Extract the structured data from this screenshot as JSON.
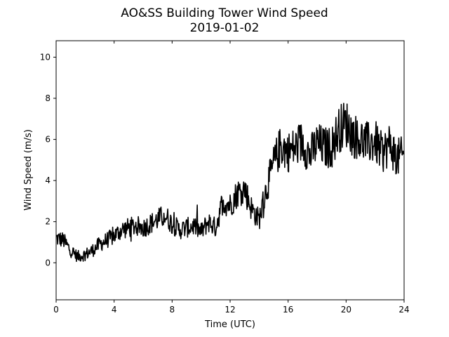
{
  "chart_data": {
    "type": "line",
    "title": "AO&SS Building Tower Wind Speed",
    "subtitle": "2019-01-02",
    "xlabel": "Time (UTC)",
    "ylabel": "Wind Speed (m/s)",
    "xlim": [
      0,
      24
    ],
    "ylim": [
      -1.8,
      10.8
    ],
    "xticks": [
      0,
      4,
      8,
      12,
      16,
      20,
      24
    ],
    "xtick_labels": [
      "0",
      "4",
      "8",
      "12",
      "16",
      "20",
      "24"
    ],
    "yticks": [
      0,
      2,
      4,
      6,
      8,
      10
    ],
    "ytick_labels": [
      "0",
      "2",
      "4",
      "6",
      "8",
      "10"
    ],
    "grid": false,
    "line_color": "#000000",
    "series": [
      {
        "x": [
          0,
          0.5,
          1,
          1.5,
          2,
          2.5,
          3,
          3.5,
          4,
          4.5,
          5,
          5.5,
          6,
          6.5,
          7,
          7.5,
          8,
          8.5,
          9,
          9.5,
          10,
          10.5,
          11,
          11.5,
          12,
          12.5,
          13,
          13.5,
          14,
          14.5,
          15,
          15.5,
          16,
          16.5,
          17,
          17.5,
          18,
          18.5,
          19,
          19.5,
          20,
          20.5,
          21,
          21.5,
          22,
          22.5,
          23,
          23.5,
          24
        ],
        "y": [
          1.2,
          1.1,
          0.6,
          0.3,
          0.4,
          0.6,
          0.9,
          1.1,
          1.3,
          1.6,
          1.7,
          1.8,
          1.7,
          1.9,
          2.1,
          2.3,
          1.9,
          1.6,
          1.7,
          1.8,
          1.5,
          2.0,
          1.7,
          3.0,
          2.8,
          3.4,
          3.6,
          2.6,
          2.1,
          3.6,
          4.8,
          5.7,
          5.4,
          5.6,
          5.9,
          5.2,
          5.8,
          5.6,
          5.6,
          6.5,
          6.8,
          6.2,
          6.0,
          5.8,
          5.9,
          5.3,
          5.8,
          5.1,
          5.2
        ]
      }
    ]
  }
}
